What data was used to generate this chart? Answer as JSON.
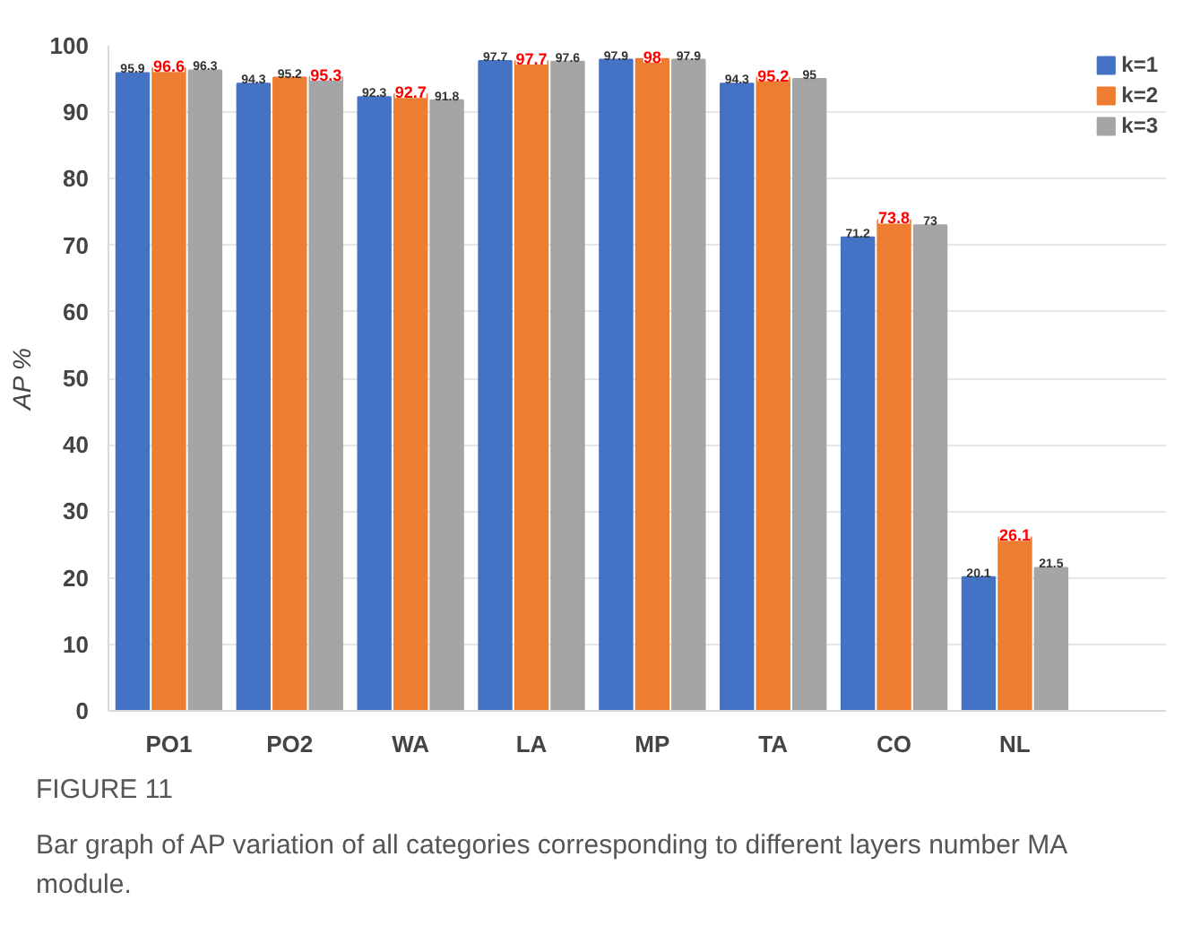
{
  "chart_data": {
    "type": "bar",
    "ylabel": "AP %",
    "categories": [
      "PO1",
      "PO2",
      "WA",
      "LA",
      "MP",
      "TA",
      "CO",
      "NL"
    ],
    "series": [
      {
        "name": "k=1",
        "color": "#4472c4",
        "values": [
          95.9,
          94.3,
          92.3,
          97.7,
          97.9,
          94.3,
          71.2,
          20.1
        ]
      },
      {
        "name": "k=2",
        "color": "#ed7d31",
        "values": [
          96.6,
          95.2,
          92.7,
          97.7,
          98,
          95.2,
          73.8,
          26.1
        ]
      },
      {
        "name": "k=3",
        "color": "#a5a5a5",
        "values": [
          96.3,
          95.3,
          91.8,
          97.6,
          97.9,
          95,
          73,
          21.5
        ]
      }
    ],
    "ylim": [
      0,
      100
    ],
    "yticks": [
      0,
      10,
      20,
      30,
      40,
      50,
      60,
      70,
      80,
      90,
      100
    ],
    "grid": "y",
    "legend": "right",
    "data_labels": true,
    "annotations": [
      "FIGURE 11",
      "Bar graph of AP variation of all categories corresponding to different layers number MA module."
    ]
  }
}
